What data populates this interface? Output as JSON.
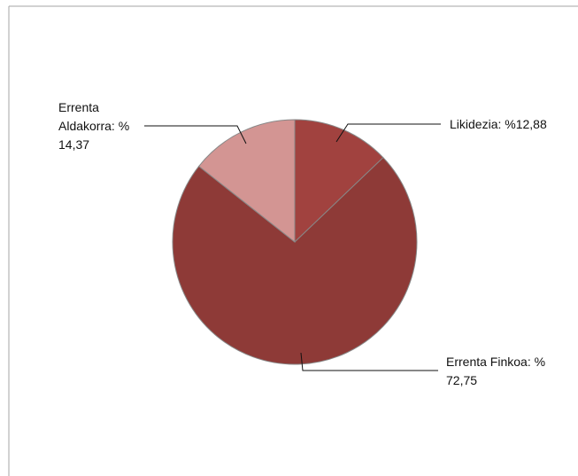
{
  "chart_data": {
    "type": "pie",
    "start_angle_deg": 0,
    "direction": "clockwise",
    "slices": [
      {
        "label": "Likidezia",
        "value": 12.88,
        "color": "#a1423f",
        "label_lines": [
          "Likidezia: %12,88"
        ]
      },
      {
        "label": "Errenta Finkoa",
        "value": 72.75,
        "color": "#8e3a37",
        "label_lines": [
          "Errenta Finkoa: %",
          "72,75"
        ]
      },
      {
        "label": "Errenta Aldakorra",
        "value": 14.37,
        "color": "#d39593",
        "label_lines": [
          "Errenta",
          "Aldakorra: %",
          "14,37"
        ]
      }
    ],
    "slice_border_color": "#888888",
    "legend": "none"
  }
}
